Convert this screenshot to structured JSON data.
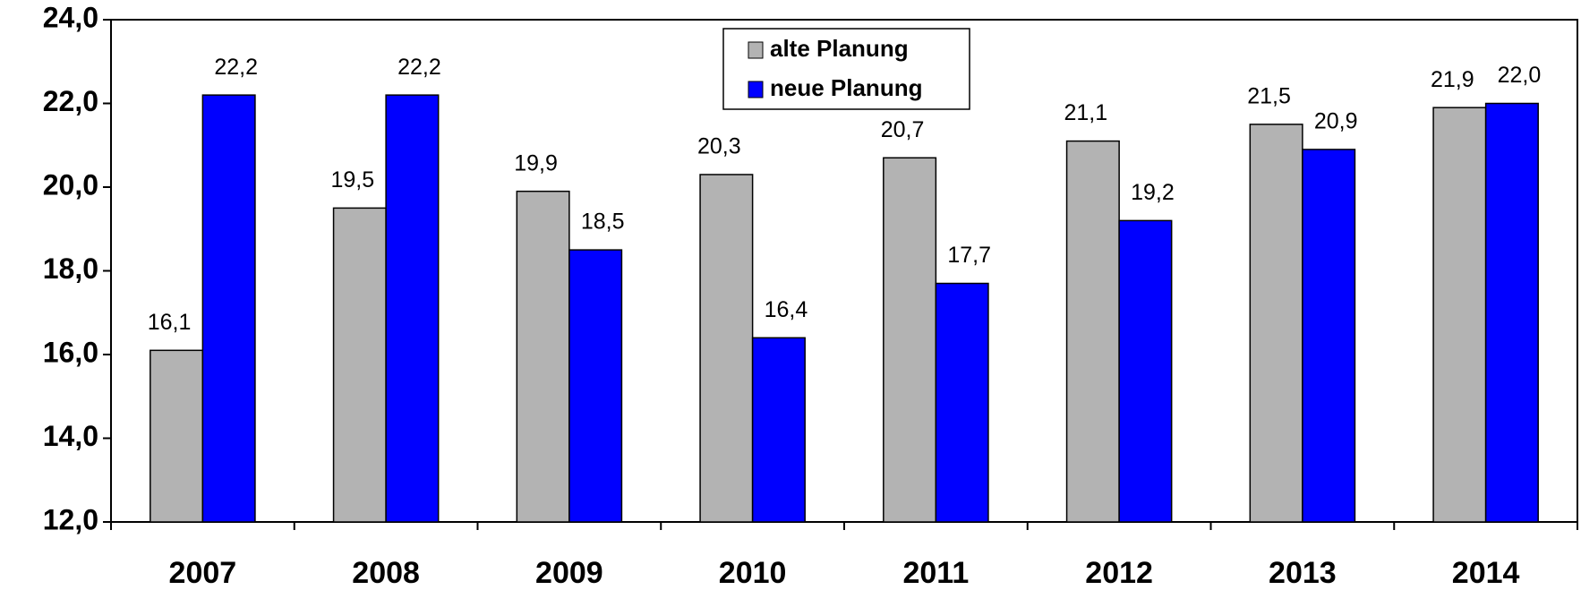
{
  "chart_data": {
    "type": "bar",
    "categories": [
      "2007",
      "2008",
      "2009",
      "2010",
      "2011",
      "2012",
      "2013",
      "2014"
    ],
    "series": [
      {
        "name": "alte Planung",
        "color": "#b3b3b3",
        "values": [
          16.1,
          19.5,
          19.9,
          20.3,
          20.7,
          21.1,
          21.5,
          21.9
        ],
        "value_labels": [
          "16,1",
          "19,5",
          "19,9",
          "20,3",
          "20,7",
          "21,1",
          "21,5",
          "21,9"
        ]
      },
      {
        "name": "neue Planung",
        "color": "#0000ff",
        "values": [
          22.2,
          22.2,
          18.5,
          16.4,
          17.7,
          19.2,
          20.9,
          22.0
        ],
        "value_labels": [
          "22,2",
          "22,2",
          "18,5",
          "16,4",
          "17,7",
          "19,2",
          "20,9",
          "22,0"
        ]
      }
    ],
    "ylim": [
      12,
      24
    ],
    "yticks": [
      {
        "value": 12,
        "label": "12,0"
      },
      {
        "value": 14,
        "label": "14,0"
      },
      {
        "value": 16,
        "label": "16,0"
      },
      {
        "value": 18,
        "label": "18,0"
      },
      {
        "value": 20,
        "label": "20,0"
      },
      {
        "value": 22,
        "label": "22,0"
      },
      {
        "value": 24,
        "label": "24,0"
      }
    ],
    "grid": false,
    "legend": "top-center"
  }
}
